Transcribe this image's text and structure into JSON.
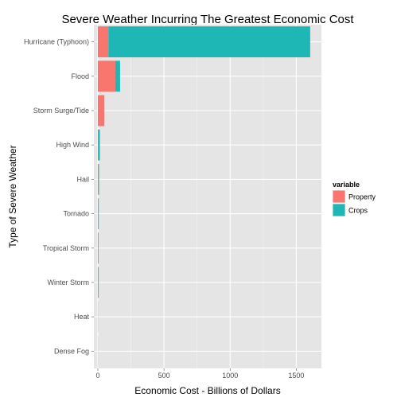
{
  "colors": {
    "panel_background": "#e5e5e5",
    "grid_major": "#ffffff",
    "grid_minor": "#f2f2f2",
    "property": "#f8766d",
    "crops": "#1fb7b5",
    "tick_text": "#4d4d4d"
  },
  "chart_data": {
    "type": "bar",
    "orientation": "horizontal",
    "stacked": true,
    "title": "Severe Weather Incurring The Greatest Economic Cost",
    "xlabel": "Economic Cost - Billions of Dollars",
    "ylabel": "Type of Severe Weather",
    "xlim": [
      -30,
      1690
    ],
    "x_ticks": [
      0,
      500,
      1000,
      1500
    ],
    "grid": true,
    "legend_position": "right",
    "legend_title": "variable",
    "categories": [
      "Hurricane (Typhoon)",
      "Flood",
      "Storm Surge/Tide",
      "High Wind",
      "Hail",
      "Tornado",
      "Tropical Storm",
      "Winter Storm",
      "Heat",
      "Dense Fog"
    ],
    "series": [
      {
        "name": "Property",
        "color": "#f8766d",
        "values": [
          80,
          132,
          48,
          3,
          8,
          5,
          5,
          6,
          1,
          0.5
        ]
      },
      {
        "name": "Crops",
        "color": "#1fb7b5",
        "values": [
          1525,
          36,
          0.5,
          12,
          2,
          2,
          1,
          0.5,
          0.5,
          0.5
        ]
      }
    ]
  }
}
